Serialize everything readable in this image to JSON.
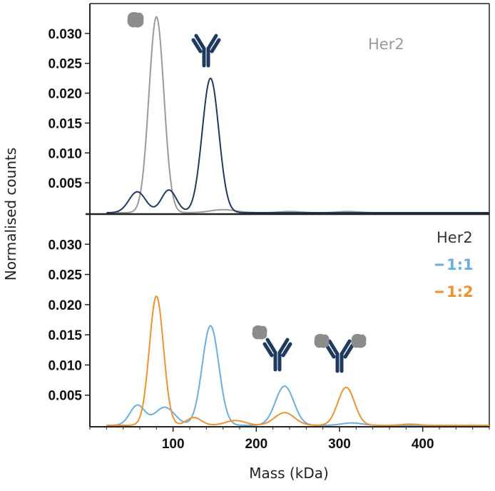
{
  "chart_data": {
    "xlabel": "Mass (kDa)",
    "ylabel": "Normalised counts",
    "xlim": [
      0,
      480
    ],
    "x_ticks": [
      "100",
      "200",
      "300",
      "400"
    ],
    "x_tick_values": [
      100,
      200,
      300,
      400
    ],
    "panels": [
      {
        "type": "line",
        "ylim": [
          0,
          0.035
        ],
        "y_ticks": [
          "0.005",
          "0.010",
          "0.015",
          "0.020",
          "0.025",
          "0.030"
        ],
        "y_tick_values": [
          0.005,
          0.01,
          0.015,
          0.02,
          0.025,
          0.03
        ],
        "legend": {
          "title": "Her2",
          "title_color": "#9a9a9a",
          "position": "top-right"
        },
        "icons": [
          "her2-protein-icon",
          "antibody-icon"
        ],
        "series": [
          {
            "color": "#9a9a9a",
            "peaks": [
              {
                "x": 80,
                "y": 0.0328,
                "width": 9
              },
              {
                "x": 160,
                "y": 0.0005,
                "width": 15
              },
              {
                "x": 240,
                "y": 0.0002,
                "width": 12
              },
              {
                "x": 310,
                "y": 0.0002,
                "width": 12
              }
            ]
          },
          {
            "color": "#1f3a60",
            "peaks": [
              {
                "x": 57,
                "y": 0.0035,
                "width": 10
              },
              {
                "x": 95,
                "y": 0.0038,
                "width": 9
              },
              {
                "x": 145,
                "y": 0.0225,
                "width": 10
              }
            ]
          }
        ]
      },
      {
        "type": "line",
        "ylim": [
          0,
          0.035
        ],
        "y_ticks": [
          "0.005",
          "0.010",
          "0.015",
          "0.020",
          "0.025",
          "0.030"
        ],
        "y_tick_values": [
          0.005,
          0.01,
          0.015,
          0.02,
          0.025,
          0.03
        ],
        "legend": {
          "title": "Her2",
          "title_color": "#333333",
          "position": "top-right",
          "entries": [
            {
              "name": "1:1",
              "color": "#6aaee0"
            },
            {
              "name": "1:2",
              "color": "#f0922e"
            }
          ]
        },
        "icons": [
          "antibody-her2-complex-icon",
          "antibody-two-her2-complex-icon"
        ],
        "series": [
          {
            "name": "1:1",
            "color": "#6aaee0",
            "peaks": [
              {
                "x": 57,
                "y": 0.0033,
                "width": 9
              },
              {
                "x": 90,
                "y": 0.003,
                "width": 12
              },
              {
                "x": 145,
                "y": 0.0165,
                "width": 10
              },
              {
                "x": 234,
                "y": 0.0065,
                "width": 11
              },
              {
                "x": 315,
                "y": 0.0004,
                "width": 12
              }
            ]
          },
          {
            "name": "1:2",
            "color": "#f0922e",
            "peaks": [
              {
                "x": 80,
                "y": 0.0214,
                "width": 8.5
              },
              {
                "x": 125,
                "y": 0.0013,
                "width": 9
              },
              {
                "x": 175,
                "y": 0.0008,
                "width": 12
              },
              {
                "x": 234,
                "y": 0.0021,
                "width": 12
              },
              {
                "x": 308,
                "y": 0.0063,
                "width": 10
              },
              {
                "x": 385,
                "y": 0.0002,
                "width": 10
              }
            ]
          }
        ]
      }
    ]
  }
}
